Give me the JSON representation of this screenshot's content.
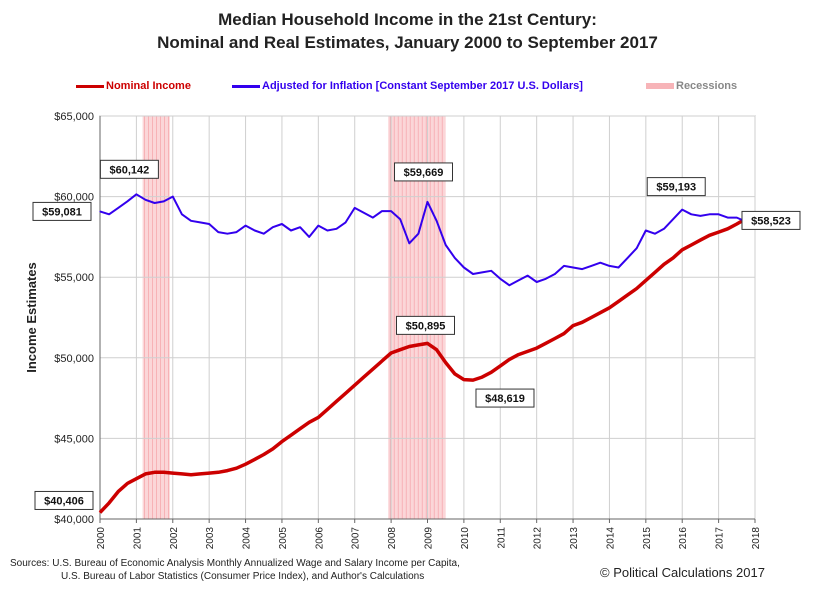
{
  "title": {
    "line1": "Median Household Income in the 21st Century:",
    "line2": "Nominal and Real Estimates, January 2000 to September 2017"
  },
  "footer": {
    "sources_line1": "Sources: U.S. Bureau of Economic Analysis Monthly Annualized Wage and Salary Income per Capita,",
    "sources_line2": "U.S. Bureau of Labor Statistics (Consumer  Price Index), and Author's Calculations",
    "credit": "© Political Calculations 2017"
  },
  "chart_data": {
    "type": "line",
    "ylabel": "Income Estimates",
    "xlabel": "",
    "xlim": [
      2000,
      2018
    ],
    "ylim": [
      40000,
      65000
    ],
    "x_ticks": [
      "2000",
      "2001",
      "2002",
      "2003",
      "2004",
      "2005",
      "2006",
      "2007",
      "2008",
      "2009",
      "2010",
      "2011",
      "2012",
      "2013",
      "2014",
      "2015",
      "2016",
      "2017",
      "2018"
    ],
    "y_ticks": [
      "$40,000",
      "$45,000",
      "$50,000",
      "$55,000",
      "$60,000",
      "$65,000"
    ],
    "y_tick_values": [
      40000,
      45000,
      50000,
      55000,
      60000,
      65000
    ],
    "colors": {
      "nominal": "#cc0000",
      "real": "#3300ee",
      "recession": "#f7b4b8"
    },
    "recessions": [
      {
        "start": 2001.17,
        "end": 2001.92
      },
      {
        "start": 2007.92,
        "end": 2009.5
      }
    ],
    "legend": [
      {
        "label": "Nominal Income",
        "key": "nominal"
      },
      {
        "label": "Adjusted for Inflation [Constant September 2017 U.S. Dollars]",
        "key": "real"
      },
      {
        "label": "Recessions",
        "key": "recession"
      }
    ],
    "series": [
      {
        "name": "Nominal Income",
        "key": "nominal",
        "x": [
          2000.0,
          2000.25,
          2000.5,
          2000.75,
          2001.0,
          2001.25,
          2001.5,
          2001.75,
          2002.0,
          2002.25,
          2002.5,
          2002.75,
          2003.0,
          2003.25,
          2003.5,
          2003.75,
          2004.0,
          2004.25,
          2004.5,
          2004.75,
          2005.0,
          2005.25,
          2005.5,
          2005.75,
          2006.0,
          2006.25,
          2006.5,
          2006.75,
          2007.0,
          2007.25,
          2007.5,
          2007.75,
          2008.0,
          2008.25,
          2008.5,
          2008.75,
          2009.0,
          2009.25,
          2009.5,
          2009.75,
          2010.0,
          2010.25,
          2010.5,
          2010.75,
          2011.0,
          2011.25,
          2011.5,
          2011.75,
          2012.0,
          2012.25,
          2012.5,
          2012.75,
          2013.0,
          2013.25,
          2013.5,
          2013.75,
          2014.0,
          2014.25,
          2014.5,
          2014.75,
          2015.0,
          2015.25,
          2015.5,
          2015.75,
          2016.0,
          2016.25,
          2016.5,
          2016.75,
          2017.0,
          2017.25,
          2017.5,
          2017.67
        ],
        "values": [
          40406,
          41000,
          41700,
          42200,
          42500,
          42800,
          42900,
          42900,
          42850,
          42800,
          42750,
          42800,
          42850,
          42900,
          43000,
          43150,
          43400,
          43700,
          44000,
          44350,
          44800,
          45200,
          45600,
          46000,
          46300,
          46800,
          47300,
          47800,
          48300,
          48800,
          49300,
          49800,
          50300,
          50500,
          50700,
          50800,
          50895,
          50500,
          49700,
          49000,
          48650,
          48619,
          48800,
          49100,
          49500,
          49900,
          50200,
          50400,
          50600,
          50900,
          51200,
          51500,
          52000,
          52200,
          52500,
          52800,
          53100,
          53500,
          53900,
          54300,
          54800,
          55300,
          55800,
          56200,
          56700,
          57000,
          57300,
          57600,
          57800,
          58000,
          58300,
          58523
        ]
      },
      {
        "name": "Adjusted for Inflation [Constant September 2017 U.S. Dollars]",
        "key": "real",
        "x": [
          2000.0,
          2000.25,
          2000.5,
          2000.75,
          2001.0,
          2001.25,
          2001.5,
          2001.75,
          2002.0,
          2002.25,
          2002.5,
          2002.75,
          2003.0,
          2003.25,
          2003.5,
          2003.75,
          2004.0,
          2004.25,
          2004.5,
          2004.75,
          2005.0,
          2005.25,
          2005.5,
          2005.75,
          2006.0,
          2006.25,
          2006.5,
          2006.75,
          2007.0,
          2007.25,
          2007.5,
          2007.75,
          2008.0,
          2008.25,
          2008.5,
          2008.75,
          2009.0,
          2009.25,
          2009.5,
          2009.75,
          2010.0,
          2010.25,
          2010.5,
          2010.75,
          2011.0,
          2011.25,
          2011.5,
          2011.75,
          2012.0,
          2012.25,
          2012.5,
          2012.75,
          2013.0,
          2013.25,
          2013.5,
          2013.75,
          2014.0,
          2014.25,
          2014.5,
          2014.75,
          2015.0,
          2015.25,
          2015.5,
          2015.75,
          2016.0,
          2016.25,
          2016.5,
          2016.75,
          2017.0,
          2017.25,
          2017.5,
          2017.67
        ],
        "values": [
          59081,
          58900,
          59300,
          59700,
          60142,
          59800,
          59600,
          59700,
          60000,
          58900,
          58500,
          58400,
          58300,
          57800,
          57700,
          57800,
          58200,
          57900,
          57700,
          58100,
          58300,
          57900,
          58100,
          57500,
          58200,
          57900,
          58000,
          58400,
          59300,
          59000,
          58700,
          59100,
          59100,
          58600,
          57100,
          57700,
          59669,
          58500,
          57000,
          56200,
          55600,
          55200,
          55300,
          55400,
          54900,
          54500,
          54800,
          55100,
          54700,
          54900,
          55200,
          55700,
          55600,
          55500,
          55700,
          55900,
          55700,
          55600,
          56200,
          56800,
          57900,
          57700,
          58000,
          58600,
          59193,
          58900,
          58800,
          58900,
          58900,
          58700,
          58700,
          58523
        ]
      }
    ],
    "annotations": [
      {
        "label": "$60,142",
        "x": 2001.0,
        "y": 60142
      },
      {
        "label": "$59,081",
        "x": 2000.0,
        "y": 59081
      },
      {
        "label": "$59,669",
        "x": 2009.0,
        "y": 59669
      },
      {
        "label": "$59,193",
        "x": 2016.0,
        "y": 59193
      },
      {
        "label": "$58,523",
        "x": 2017.67,
        "y": 58523
      },
      {
        "label": "$50,895",
        "x": 2009.0,
        "y": 50895
      },
      {
        "label": "$48,619",
        "x": 2010.25,
        "y": 48619
      },
      {
        "label": "$40,406",
        "x": 2000.0,
        "y": 40406
      }
    ]
  }
}
